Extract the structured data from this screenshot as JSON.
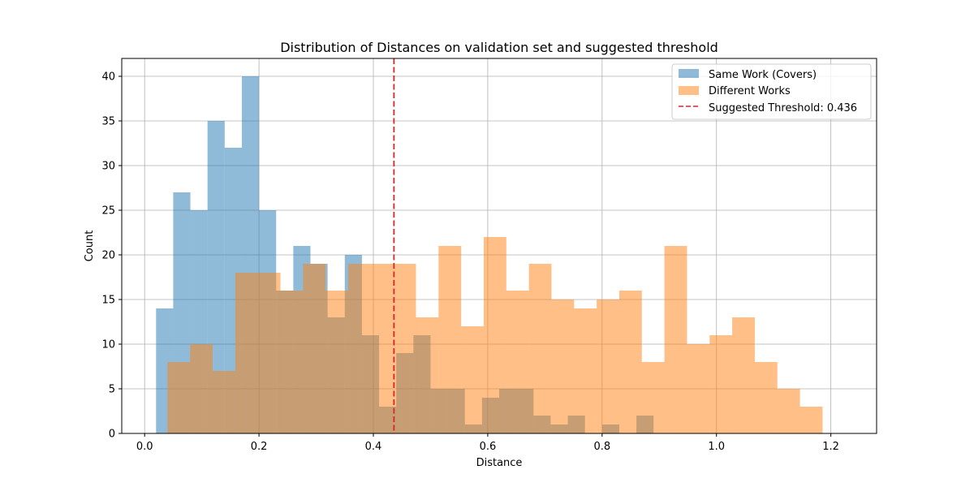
{
  "chart_data": {
    "type": "bar",
    "title": "Distribution of Distances on validation set and suggested threshold",
    "xlabel": "Distance",
    "ylabel": "Count",
    "xlim": [
      -0.04,
      1.28
    ],
    "ylim": [
      0,
      42
    ],
    "x_ticks": [
      0.0,
      0.2,
      0.4,
      0.6,
      0.8,
      1.0,
      1.2
    ],
    "x_tick_labels": [
      "0.0",
      "0.2",
      "0.4",
      "0.6",
      "0.8",
      "1.0",
      "1.2"
    ],
    "y_ticks": [
      0,
      5,
      10,
      15,
      20,
      25,
      30,
      35,
      40
    ],
    "y_tick_labels": [
      "0",
      "5",
      "10",
      "15",
      "20",
      "25",
      "30",
      "35",
      "40"
    ],
    "grid": true,
    "legend_position": "top-right",
    "series": [
      {
        "name": "Same Work (Covers)",
        "color": "#1f77b4",
        "opacity": 0.5,
        "bin_start": 0.02,
        "bin_width": 0.03,
        "values": [
          14,
          27,
          25,
          35,
          32,
          40,
          25,
          16,
          21,
          19,
          13,
          20,
          11,
          3,
          9,
          11,
          5,
          5,
          1,
          4,
          5,
          5,
          2,
          1,
          2,
          0,
          1,
          0,
          2
        ]
      },
      {
        "name": "Different Works",
        "color": "#ff7f0e",
        "opacity": 0.5,
        "bin_start": 0.04,
        "bin_width": 0.0395,
        "values": [
          8,
          10,
          7,
          18,
          18,
          16,
          19,
          16,
          19,
          19,
          19,
          13,
          21,
          12,
          22,
          16,
          19,
          15,
          14,
          15,
          16,
          8,
          21,
          10,
          11,
          13,
          8,
          5,
          3
        ]
      }
    ],
    "threshold": {
      "label": "Suggested Threshold: 0.436",
      "value": 0.436,
      "color": "#d62728"
    }
  }
}
